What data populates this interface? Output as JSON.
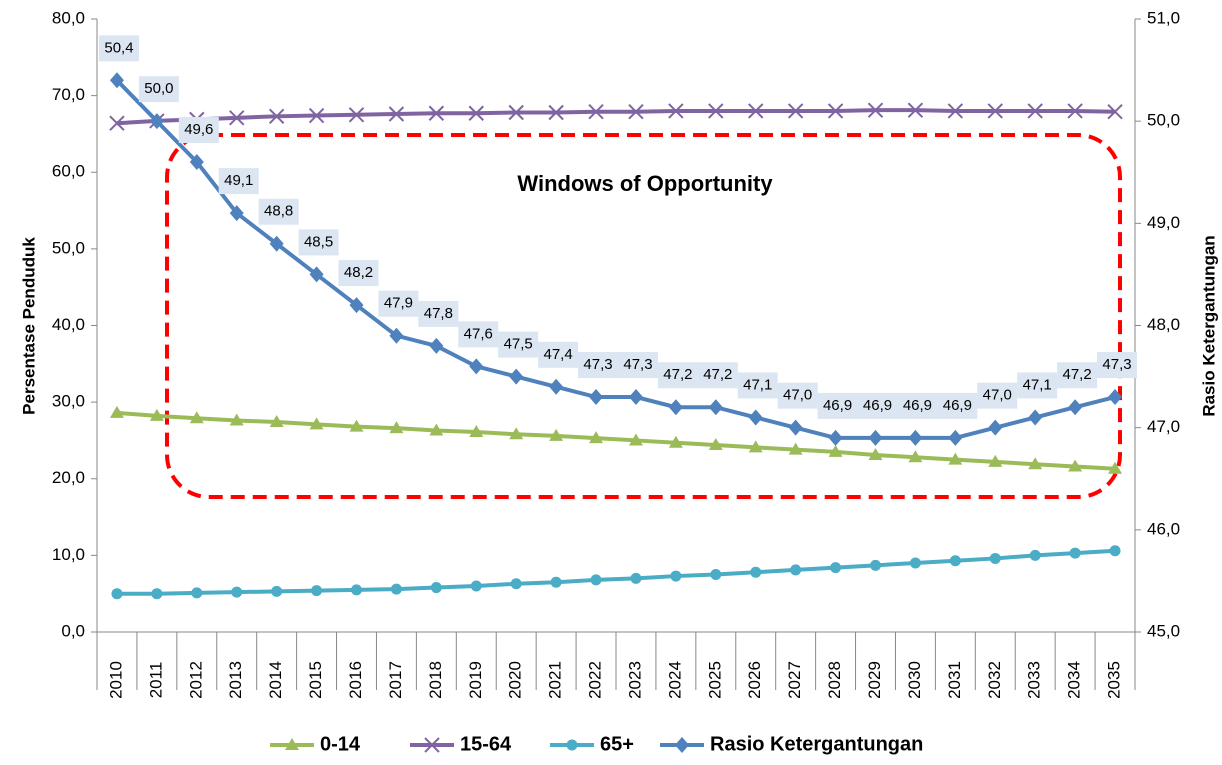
{
  "chart_data": {
    "type": "line",
    "annotation": "Windows of Opportunity",
    "y_label": "Persentase Penduduk",
    "y2_label": "Rasio Ketergantungan",
    "categories": [
      "2010",
      "2011",
      "2012",
      "2013",
      "2014",
      "2015",
      "2016",
      "2017",
      "2018",
      "2019",
      "2020",
      "2021",
      "2022",
      "2023",
      "2024",
      "2025",
      "2026",
      "2027",
      "2028",
      "2029",
      "2030",
      "2031",
      "2032",
      "2033",
      "2034",
      "2035"
    ],
    "ylim": [
      0,
      80
    ],
    "yticks": [
      {
        "value": 0,
        "label": "0,0"
      },
      {
        "value": 10,
        "label": "10,0"
      },
      {
        "value": 20,
        "label": "20,0"
      },
      {
        "value": 30,
        "label": "30,0"
      },
      {
        "value": 40,
        "label": "40,0"
      },
      {
        "value": 50,
        "label": "50,0"
      },
      {
        "value": 60,
        "label": "60,0"
      },
      {
        "value": 70,
        "label": "70,0"
      },
      {
        "value": 80,
        "label": "80,0"
      }
    ],
    "y2lim": [
      45,
      51
    ],
    "y2ticks": [
      {
        "value": 45,
        "label": "45,0"
      },
      {
        "value": 46,
        "label": "46,0"
      },
      {
        "value": 47,
        "label": "47,0"
      },
      {
        "value": 48,
        "label": "48,0"
      },
      {
        "value": 49,
        "label": "49,0"
      },
      {
        "value": 50,
        "label": "50,0"
      },
      {
        "value": 51,
        "label": "51,0"
      }
    ],
    "legend": "bottom",
    "series": [
      {
        "name": "0-14",
        "color": "#9bbb59",
        "marker": "triangle",
        "values": [
          28.6,
          28.2,
          27.9,
          27.6,
          27.4,
          27.1,
          26.8,
          26.6,
          26.3,
          26.1,
          25.8,
          25.6,
          25.3,
          25.0,
          24.7,
          24.4,
          24.1,
          23.8,
          23.5,
          23.1,
          22.8,
          22.5,
          22.2,
          21.9,
          21.6,
          21.3
        ]
      },
      {
        "name": "15-64",
        "color": "#8064a2",
        "marker": "x",
        "values": [
          66.4,
          66.7,
          66.9,
          67.1,
          67.3,
          67.4,
          67.5,
          67.6,
          67.7,
          67.7,
          67.8,
          67.8,
          67.9,
          67.9,
          68.0,
          68.0,
          68.0,
          68.0,
          68.0,
          68.1,
          68.1,
          68.0,
          68.0,
          68.0,
          68.0,
          67.9
        ]
      },
      {
        "name": "65+",
        "color": "#4bacc6",
        "marker": "circle",
        "values": [
          5.0,
          5.0,
          5.1,
          5.2,
          5.3,
          5.4,
          5.5,
          5.6,
          5.8,
          6.0,
          6.3,
          6.5,
          6.8,
          7.0,
          7.3,
          7.5,
          7.8,
          8.1,
          8.4,
          8.7,
          9.0,
          9.3,
          9.6,
          10.0,
          10.3,
          10.6
        ]
      },
      {
        "name": "Rasio Ketergantungan",
        "color": "#4f81bd",
        "marker": "diamond",
        "axis": "y2",
        "values": [
          50.4,
          50.0,
          49.6,
          49.1,
          48.8,
          48.5,
          48.2,
          47.9,
          47.8,
          47.6,
          47.5,
          47.4,
          47.3,
          47.3,
          47.2,
          47.2,
          47.1,
          47.0,
          46.9,
          46.9,
          46.9,
          46.9,
          47.0,
          47.1,
          47.2,
          47.3
        ],
        "value_labels": [
          "50,4",
          "50,0",
          "49,6",
          "49,1",
          "48,8",
          "48,5",
          "48,2",
          "47,9",
          "47,8",
          "47,6",
          "47,5",
          "47,4",
          "47,3",
          "47,3",
          "47,2",
          "47,2",
          "47,1",
          "47,0",
          "46,9",
          "46,9",
          "46,9",
          "46,9",
          "47,0",
          "47,1",
          "47,2",
          "47,3"
        ]
      }
    ]
  }
}
